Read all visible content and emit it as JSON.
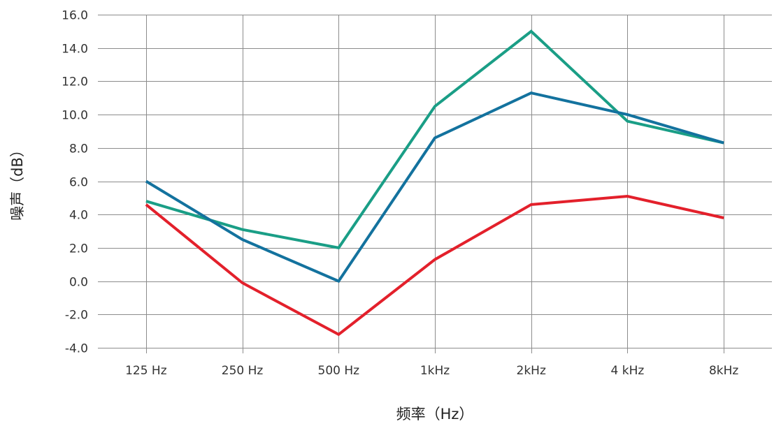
{
  "chart_data": {
    "type": "line",
    "xlabel": "频率（Hz）",
    "ylabel": "噪声（dB）",
    "categories": [
      "125 Hz",
      "250 Hz",
      "500 Hz",
      "1kHz",
      "2kHz",
      "4 kHz",
      "8kHz"
    ],
    "ylim": [
      -4.0,
      16.0
    ],
    "yticks": [
      "16.0",
      "14.0",
      "12.0",
      "10.0",
      "8.0",
      "6.0",
      "4.0",
      "2.0",
      "0.0",
      "-2.0",
      "-4.0"
    ],
    "grid": true,
    "series": [
      {
        "color": "#1a9e86",
        "values": [
          4.8,
          3.1,
          2.0,
          10.5,
          15.0,
          9.6,
          8.3
        ]
      },
      {
        "color": "#13729e",
        "values": [
          6.0,
          2.5,
          0.0,
          8.6,
          11.3,
          10.0,
          8.3
        ]
      },
      {
        "color": "#e3202b",
        "values": [
          4.6,
          -0.1,
          -3.2,
          1.3,
          4.6,
          5.1,
          3.8
        ]
      }
    ]
  }
}
